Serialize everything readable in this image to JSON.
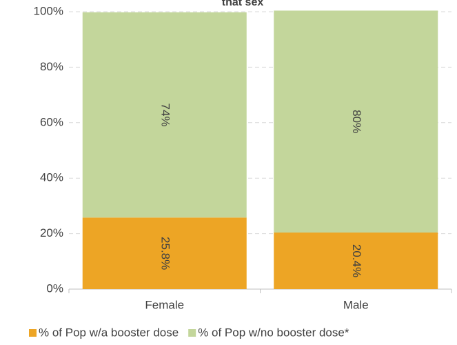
{
  "chart_data": {
    "type": "stacked_bar",
    "title": "that sex",
    "categories": [
      "Female",
      "Male"
    ],
    "series": [
      {
        "name": "% of Pop w/a booster dose",
        "color": "#eda525",
        "values": [
          25.8,
          20.4
        ],
        "value_labels": [
          "25.8%",
          "20.4%"
        ]
      },
      {
        "name": "% of Pop w/no booster dose*",
        "color": "#c3d69b",
        "values": [
          74,
          80
        ],
        "value_labels": [
          "74%",
          "80%"
        ]
      }
    ],
    "ylim": [
      0,
      100
    ],
    "yticks": [
      {
        "value": 0,
        "label": "0%"
      },
      {
        "value": 20,
        "label": "20%"
      },
      {
        "value": 40,
        "label": "40%"
      },
      {
        "value": 60,
        "label": "60%"
      },
      {
        "value": 80,
        "label": "80%"
      },
      {
        "value": 100,
        "label": "100%"
      }
    ],
    "grid": true,
    "legend": "bottom"
  }
}
